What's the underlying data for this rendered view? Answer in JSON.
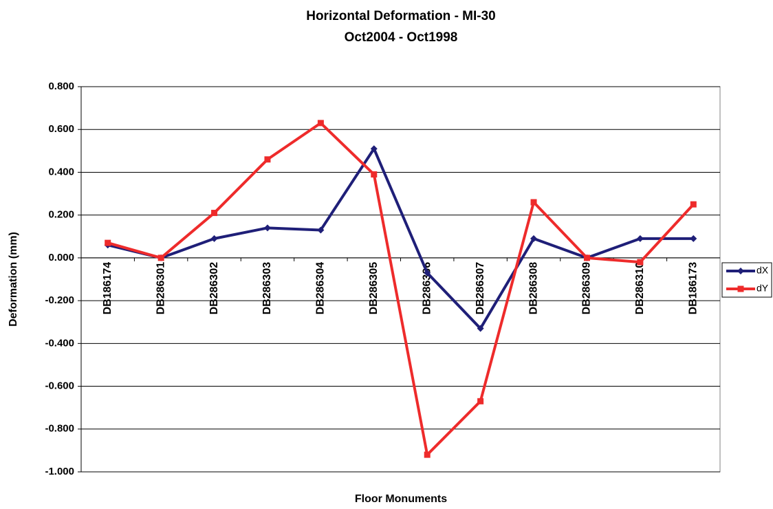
{
  "chart_data": {
    "type": "line",
    "title": "Horizontal Deformation - MI-30",
    "subtitle": "Oct2004 - Oct1998",
    "x_label": "Floor Monuments",
    "y_label": "Deformation (mm)",
    "categories": [
      "DB186174",
      "DB286301",
      "DB286302",
      "DB286303",
      "DB286304",
      "DB286305",
      "DB286306",
      "DB286307",
      "DB286308",
      "DB286309",
      "DB286310",
      "DB186173"
    ],
    "series": [
      {
        "name": "dX",
        "color": "#1f1f78",
        "marker": "diamond",
        "values": [
          0.06,
          0.0,
          0.09,
          0.14,
          0.13,
          0.51,
          -0.07,
          -0.33,
          0.09,
          0.0,
          0.09,
          0.09
        ]
      },
      {
        "name": "dY",
        "color": "#ee2b2b",
        "marker": "square",
        "values": [
          0.07,
          0.0,
          0.21,
          0.46,
          0.63,
          0.39,
          -0.92,
          -0.67,
          0.26,
          0.0,
          -0.02,
          0.25
        ]
      }
    ],
    "ylim": [
      -1.0,
      0.8
    ],
    "yticks": [
      {
        "value": -1.0,
        "label": "-1.000"
      },
      {
        "value": -0.8,
        "label": "-0.800"
      },
      {
        "value": -0.6,
        "label": "-0.600"
      },
      {
        "value": -0.4,
        "label": "-0.400"
      },
      {
        "value": -0.2,
        "label": "-0.200"
      },
      {
        "value": 0.0,
        "label": "0.000"
      },
      {
        "value": 0.2,
        "label": "0.200"
      },
      {
        "value": 0.4,
        "label": "0.400"
      },
      {
        "value": 0.6,
        "label": "0.600"
      },
      {
        "value": 0.8,
        "label": "0.800"
      }
    ],
    "grid": true,
    "legend": "right"
  }
}
